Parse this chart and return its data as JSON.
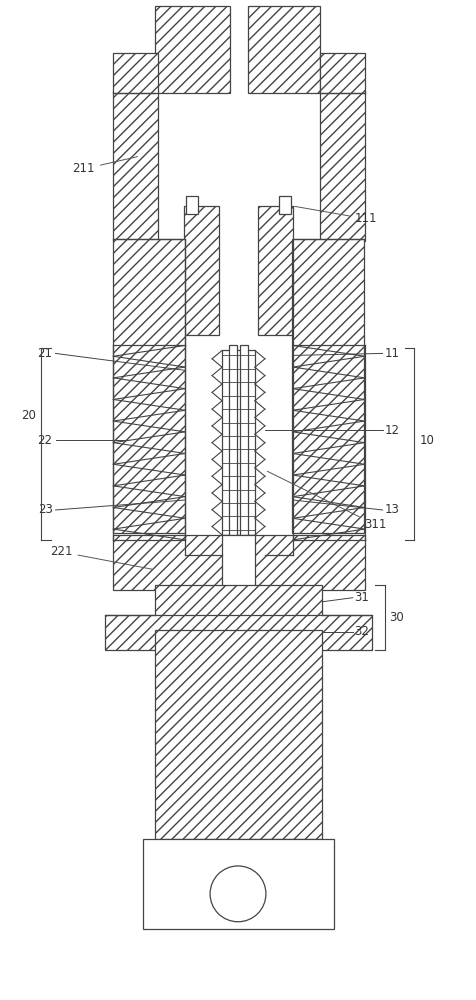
{
  "fig_width": 4.77,
  "fig_height": 10.0,
  "bg_color": "#ffffff",
  "ec": "#444444",
  "lw": 0.9,
  "hatch": "///",
  "fontsize": 8.5
}
